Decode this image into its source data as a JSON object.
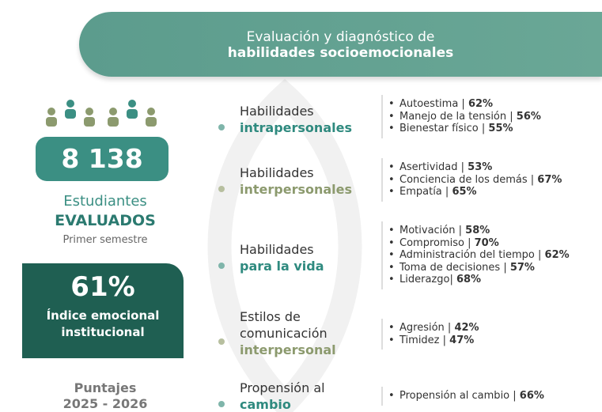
{
  "header": {
    "line1": "Evaluación y diagnóstico de",
    "line2": "habilidades socioemocionales"
  },
  "students": {
    "count": "8 138",
    "label1": "Estudiantes",
    "label2": "EVALUADOS",
    "period": "Primer semestre"
  },
  "index": {
    "value": "61%",
    "label": "Índice emocional institucional"
  },
  "scores": {
    "label": "Puntajes",
    "years": "2025 - 2026"
  },
  "categories": [
    {
      "lines": [
        "Habilidades"
      ],
      "emphasis": "intrapersonales",
      "items": [
        {
          "label": "Autoestima |",
          "value": "62%"
        },
        {
          "label": "Manejo de la tensión |",
          "value": "56%"
        },
        {
          "label": "Bienestar físico |",
          "value": "55%"
        }
      ]
    },
    {
      "lines": [
        "Habilidades"
      ],
      "emphasis": "interpersonales",
      "items": [
        {
          "label": "Asertividad |",
          "value": "53%"
        },
        {
          "label": "Conciencia de los demás |",
          "value": "67%"
        },
        {
          "label": "Empatía |",
          "value": "65%"
        }
      ]
    },
    {
      "lines": [
        "Habilidades"
      ],
      "emphasis": "para la vida",
      "items": [
        {
          "label": "Motivación |",
          "value": "58%"
        },
        {
          "label": "Compromiso |",
          "value": "70%"
        },
        {
          "label": "Administración del tiempo |",
          "value": "62%"
        },
        {
          "label": "Toma de decisiones |",
          "value": "57%"
        },
        {
          "label": "Liderazgo|",
          "value": "68%"
        }
      ]
    },
    {
      "lines": [
        "Estilos de",
        "comunicación"
      ],
      "emphasis": "interpersonal",
      "items": [
        {
          "label": "Agresión |",
          "value": "42%"
        },
        {
          "label": "Timidez |",
          "value": "47%"
        }
      ]
    },
    {
      "lines": [
        "Propensión al"
      ],
      "emphasis": "cambio",
      "items": [
        {
          "label": "Propensión al cambio |",
          "value": "66%"
        }
      ]
    }
  ]
}
